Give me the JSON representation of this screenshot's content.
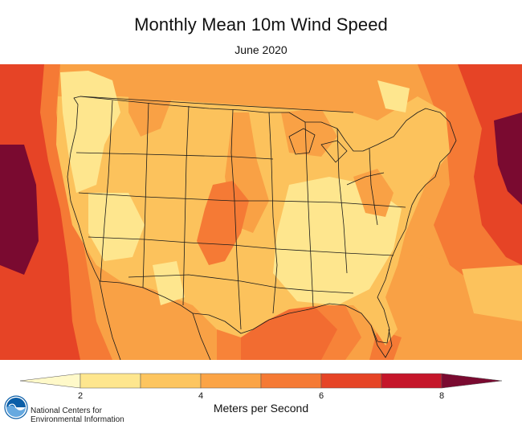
{
  "title": "Monthly Mean 10m Wind Speed",
  "subtitle": "June 2020",
  "legend": {
    "label": "Meters per Second",
    "ticks": [
      "2",
      "4",
      "6",
      "8"
    ],
    "colors": [
      "#fff9c9",
      "#fee68e",
      "#fdc55f",
      "#fba446",
      "#f57a35",
      "#e64426",
      "#c5162a",
      "#7a0a30"
    ]
  },
  "org": {
    "line1": "National Centers for",
    "line2": "Environmental Information"
  },
  "colors": {
    "ocean_base": "#f8882e",
    "land_base": "#fcc25c",
    "noaa_blue": "#0a5ea8"
  }
}
